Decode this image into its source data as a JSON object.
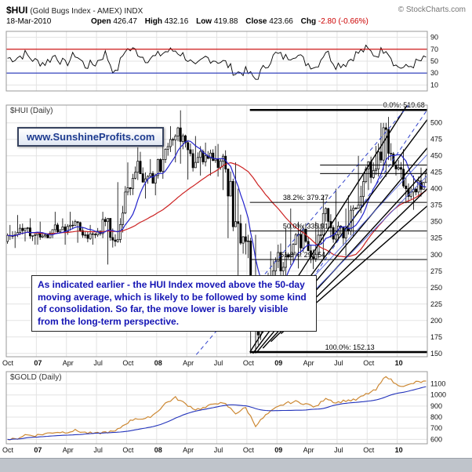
{
  "header": {
    "symbol": "$HUI",
    "description": "(Gold Bugs Index - AMEX) INDX",
    "copyright": "© StockCharts.com",
    "date": "18-Mar-2010"
  },
  "quote": {
    "open_label": "Open",
    "open": "426.47",
    "high_label": "High",
    "high": "432.16",
    "low_label": "Low",
    "low": "419.88",
    "close_label": "Close",
    "close": "423.66",
    "chg_label": "Chg",
    "chg": "-2.80 (-0.66%)"
  },
  "watermark": "www.SunshineProfits.com",
  "annotation": "As indicated earlier - the HUI Index moved above the 50-day moving average, which is likely to be followed by some kind of consolidation. So far, the move lower is barely visible from the long-term perspective.",
  "x_axis": {
    "domain": [
      0,
      42
    ],
    "ticks": [
      {
        "text": "Oct",
        "month": 0
      },
      {
        "text": "07",
        "month": 3,
        "bold": true
      },
      {
        "text": "Apr",
        "month": 6
      },
      {
        "text": "Jul",
        "month": 9
      },
      {
        "text": "Oct",
        "month": 12
      },
      {
        "text": "08",
        "month": 15,
        "bold": true
      },
      {
        "text": "Apr",
        "month": 18
      },
      {
        "text": "Jul",
        "month": 21
      },
      {
        "text": "Oct",
        "month": 24
      },
      {
        "text": "09",
        "month": 27,
        "bold": true
      },
      {
        "text": "Apr",
        "month": 30
      },
      {
        "text": "Jul",
        "month": 33
      },
      {
        "text": "Oct",
        "month": 36
      },
      {
        "text": "10",
        "month": 39,
        "bold": true
      }
    ]
  },
  "chart_data": [
    {
      "type": "line",
      "name": "momentum-oscillator",
      "ylim": [
        0,
        100
      ],
      "yticks": [
        90,
        70,
        50,
        30,
        10
      ],
      "hlines": [
        {
          "value": 70,
          "color": "#cc0000"
        },
        {
          "value": 30,
          "color": "#2233bb"
        }
      ],
      "values": [
        55,
        62,
        50,
        47,
        60,
        44,
        62,
        42,
        46,
        63,
        28,
        70,
        68,
        54,
        57,
        66,
        68,
        58,
        38,
        56,
        52,
        47,
        30,
        33,
        20,
        42,
        62,
        56,
        63,
        48,
        40,
        68,
        44,
        47,
        62,
        70,
        60,
        73,
        42,
        38,
        47,
        54
      ]
    },
    {
      "type": "candlestick",
      "label": "$HUI (Daily)",
      "ylim": [
        145,
        527
      ],
      "yticks": [
        500,
        475,
        450,
        425,
        400,
        375,
        350,
        325,
        300,
        275,
        250,
        225,
        200,
        175,
        150
      ],
      "ohlc": {
        "open": [
          320,
          330,
          340,
          330,
          330,
          345,
          335,
          350,
          330,
          330,
          350,
          320,
          395,
          425,
          415,
          420,
          460,
          480,
          470,
          440,
          450,
          445,
          430,
          350,
          320,
          185,
          220,
          290,
          300,
          330,
          320,
          300,
          370,
          330,
          340,
          370,
          430,
          430,
          490,
          430,
          400,
          395
        ],
        "high": [
          345,
          360,
          355,
          350,
          365,
          355,
          365,
          350,
          345,
          365,
          355,
          410,
          440,
          463,
          445,
          480,
          495,
          519,
          480,
          470,
          465,
          468,
          440,
          400,
          330,
          260,
          305,
          340,
          370,
          350,
          350,
          390,
          400,
          370,
          390,
          450,
          465,
          500,
          509,
          460,
          420,
          432.16
        ],
        "low": [
          310,
          320,
          315,
          315,
          325,
          315,
          330,
          318,
          315,
          325,
          285,
          318,
          390,
          385,
          390,
          415,
          440,
          438,
          414,
          420,
          420,
          398,
          325,
          258,
          150,
          163,
          208,
          253,
          284,
          279,
          278,
          294,
          318,
          298,
          328,
          363,
          398,
          418,
          420,
          378,
          368,
          388
        ],
        "close": [
          330,
          340,
          330,
          330,
          345,
          335,
          350,
          330,
          330,
          350,
          320,
          395,
          425,
          415,
          420,
          460,
          480,
          470,
          440,
          450,
          445,
          430,
          350,
          320,
          185,
          220,
          290,
          300,
          330,
          320,
          300,
          370,
          330,
          340,
          370,
          430,
          430,
          490,
          430,
          400,
          395,
          423.66
        ]
      },
      "ma": [
        {
          "name": "50-day moving average",
          "weeks": 10,
          "color": "#2222cc"
        },
        {
          "name": "200-day moving average",
          "weeks": 43,
          "color": "#cc2222"
        }
      ],
      "fib_levels": [
        {
          "label": "0.0%: 519.68",
          "value": 519.68,
          "from": 24.3,
          "label_at": 37.6,
          "weight": 2.5
        },
        {
          "label": "38.2%: 379.27",
          "value": 379.27,
          "from": 24.3,
          "label_at": 27.6,
          "weight": 1
        },
        {
          "label": "50.0%: 335.91",
          "value": 335.91,
          "from": 24.3,
          "label_at": 27.6,
          "weight": 1
        },
        {
          "label": "61.8%: 292.54",
          "value": 292.54,
          "from": 24.3,
          "label_at": 27.3,
          "weight": 1
        },
        {
          "label": "100.0%: 152.13",
          "value": 152.13,
          "from": 24.3,
          "label_at": 31.8,
          "weight": 2.5
        }
      ],
      "resistance_lines": [
        {
          "value": 436,
          "from": 31.3
        },
        {
          "value": 423,
          "from": 31.3
        }
      ],
      "trend_lines": [
        {
          "x1": 24.3,
          "y1": 152,
          "x2": 42,
          "y2": 575,
          "color": "#000000",
          "width": 1.4,
          "dash": ""
        },
        {
          "x1": 24.6,
          "y1": 150,
          "x2": 42,
          "y2": 505,
          "color": "#000000",
          "width": 1.4,
          "dash": ""
        },
        {
          "x1": 25.0,
          "y1": 152,
          "x2": 42,
          "y2": 462,
          "color": "#000000",
          "width": 1.4,
          "dash": ""
        },
        {
          "x1": 25.6,
          "y1": 158,
          "x2": 42,
          "y2": 430,
          "color": "#000000",
          "width": 1.4,
          "dash": ""
        },
        {
          "x1": 26.4,
          "y1": 168,
          "x2": 42,
          "y2": 400,
          "color": "#000000",
          "width": 1.4,
          "dash": ""
        },
        {
          "x1": 27.4,
          "y1": 180,
          "x2": 42,
          "y2": 374,
          "color": "#000000",
          "width": 1.4,
          "dash": ""
        },
        {
          "x1": 18.5,
          "y1": 140,
          "x2": 42,
          "y2": 560,
          "color": "#3344cc",
          "width": 1,
          "dash": "5,4"
        },
        {
          "x1": 27.0,
          "y1": 185,
          "x2": 42,
          "y2": 520,
          "color": "#3344cc",
          "width": 1,
          "dash": "5,4"
        },
        {
          "x1": 26.0,
          "y1": 190,
          "x2": 42,
          "y2": 452,
          "color": "#5566dd",
          "width": 0.9,
          "dash": ""
        },
        {
          "x1": 27.8,
          "y1": 200,
          "x2": 42,
          "y2": 420,
          "color": "#5566dd",
          "width": 0.9,
          "dash": ""
        }
      ]
    },
    {
      "type": "line",
      "label": "$GOLD (Daily)",
      "ylim": [
        560,
        1210
      ],
      "yticks": [
        1100,
        1000,
        900,
        800,
        700,
        600
      ],
      "color": "#cc8833",
      "ma": [
        {
          "name": "moving average",
          "weeks": 30,
          "color": "#2233bb"
        }
      ],
      "values": [
        600,
        640,
        635,
        650,
        665,
        665,
        680,
        660,
        650,
        665,
        670,
        740,
        790,
        780,
        835,
        925,
        975,
        920,
        870,
        885,
        930,
        915,
        835,
        885,
        725,
        815,
        880,
        925,
        940,
        920,
        890,
        975,
        930,
        950,
        955,
        1005,
        1045,
        1175,
        1095,
        1080,
        1115,
        1120
      ]
    }
  ]
}
